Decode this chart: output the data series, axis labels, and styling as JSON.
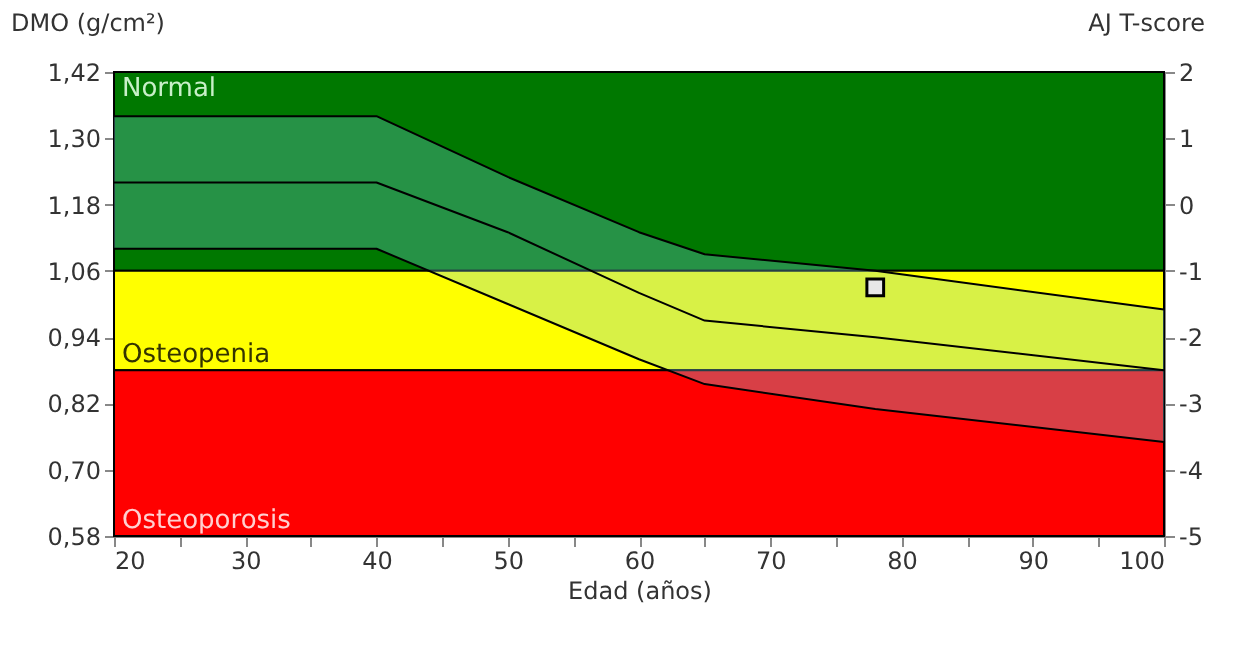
{
  "chart_data": {
    "type": "line",
    "xlabel": "Edad (años)",
    "ylabel": "DMO (g/cm²)",
    "y2label": "AJ T-score",
    "xlim": [
      20,
      100
    ],
    "xticks": [
      20,
      {
        "value": 25,
        "label": null
      },
      30,
      {
        "value": 35,
        "label": null
      },
      40,
      {
        "value": 45,
        "label": null
      },
      50,
      {
        "value": 55,
        "label": null
      },
      60,
      {
        "value": 65,
        "label": null
      },
      70,
      {
        "value": 75,
        "label": null
      },
      80,
      {
        "value": 85,
        "label": null
      },
      90,
      {
        "value": 95,
        "label": null
      },
      100
    ],
    "ylim": [
      0.58,
      1.42
    ],
    "yticks": [
      {
        "value": 0.58,
        "label": "0,58"
      },
      {
        "value": 0.7,
        "label": "0,70"
      },
      {
        "value": 0.82,
        "label": "0,82"
      },
      {
        "value": 0.94,
        "label": "0,94"
      },
      {
        "value": 1.06,
        "label": "1,06"
      },
      {
        "value": 1.18,
        "label": "1,18"
      },
      {
        "value": 1.3,
        "label": "1,30"
      },
      {
        "value": 1.42,
        "label": "1,42"
      }
    ],
    "y2lim": [
      -5,
      2
    ],
    "y2ticks": [
      -5,
      -4,
      -3,
      -2,
      -1,
      0,
      1,
      2
    ],
    "bands": [
      {
        "axis": "y",
        "from": 1.06,
        "to": 1.42,
        "label": "Normal",
        "color": "#007800"
      },
      {
        "axis": "y",
        "from": 0.88,
        "to": 1.06,
        "label": "Osteopenia",
        "color": "#ffff00"
      },
      {
        "axis": "y",
        "from": 0.58,
        "to": 0.88,
        "label": "Osteoporosis",
        "color": "#ff0000"
      }
    ],
    "series": [
      {
        "color": "#000000",
        "x": [
          20,
          40,
          50,
          60,
          65,
          78,
          100
        ],
        "values": [
          1.34,
          1.34,
          1.23,
          1.13,
          1.09,
          1.06,
          0.99
        ]
      },
      {
        "color": "#000000",
        "x": [
          20,
          40,
          50,
          60,
          65,
          78,
          100
        ],
        "values": [
          1.22,
          1.22,
          1.13,
          1.02,
          0.97,
          0.94,
          0.88
        ],
        "lower": [
          1.1,
          1.1,
          1.0,
          0.9,
          0.855,
          0.81,
          0.75
        ],
        "upper": [
          1.34,
          1.34,
          1.23,
          1.13,
          1.09,
          1.06,
          0.99
        ]
      },
      {
        "color": "#000000",
        "x": [
          20,
          40,
          50,
          60,
          65,
          78,
          100
        ],
        "values": [
          1.1,
          1.1,
          1.0,
          0.9,
          0.855,
          0.81,
          0.75
        ]
      },
      {
        "type": "scatter",
        "color": "#e8e8e8",
        "marker": "square",
        "x": [
          78
        ],
        "values": [
          1.03
        ]
      }
    ],
    "line_style": "solid"
  }
}
